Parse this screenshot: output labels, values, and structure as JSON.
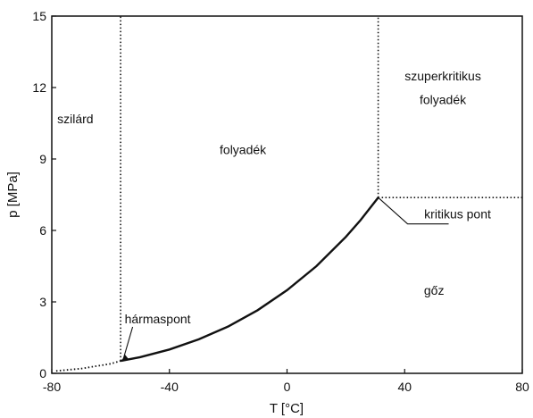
{
  "chart_data": {
    "type": "line",
    "title": "",
    "xlabel": "T [°C]",
    "ylabel": "p [MPa]",
    "xlim": [
      -80,
      80
    ],
    "ylim": [
      0,
      15
    ],
    "xticks": [
      "-80",
      "-40",
      "0",
      "40",
      "80"
    ],
    "yticks": [
      "0",
      "3",
      "6",
      "9",
      "12",
      "15"
    ],
    "grid": false,
    "series": [
      {
        "style": "solid",
        "points": [
          [
            -56.6,
            0.52
          ],
          [
            -50,
            0.68
          ],
          [
            -40,
            1.0
          ],
          [
            -30,
            1.43
          ],
          [
            -20,
            1.97
          ],
          [
            -10,
            2.65
          ],
          [
            0,
            3.49
          ],
          [
            10,
            4.5
          ],
          [
            20,
            5.73
          ],
          [
            25,
            6.43
          ],
          [
            31,
            7.38
          ]
        ]
      },
      {
        "style": "dotted",
        "points": [
          [
            -78.5,
            0.1
          ],
          [
            -70,
            0.2
          ],
          [
            -60,
            0.4
          ],
          [
            -56.6,
            0.52
          ]
        ]
      }
    ],
    "boundaries": [
      {
        "style": "dotted",
        "points": [
          [
            -56.6,
            0.52
          ],
          [
            -56.6,
            15
          ]
        ]
      },
      {
        "style": "dotted",
        "points": [
          [
            31,
            7.38
          ],
          [
            31,
            15
          ]
        ]
      },
      {
        "style": "dotted",
        "points": [
          [
            31,
            7.38
          ],
          [
            80,
            7.38
          ]
        ]
      }
    ],
    "annotations": [
      {
        "text": "szilárd",
        "x": -72,
        "y": 10.5
      },
      {
        "text": "folyadék",
        "x": -15,
        "y": 9.2
      },
      {
        "text": "szuperkritikus",
        "x": 53,
        "y": 12.3
      },
      {
        "text": "folyadék",
        "x": 53,
        "y": 11.3
      },
      {
        "text": "kritikus pont",
        "x": 58,
        "y": 6.5,
        "target": [
          31,
          7.38
        ]
      },
      {
        "text": "gőz",
        "x": 50,
        "y": 3.3
      },
      {
        "text": "hármaspont",
        "x": -44,
        "y": 2.1,
        "target": [
          -56.6,
          0.52
        ]
      }
    ]
  }
}
